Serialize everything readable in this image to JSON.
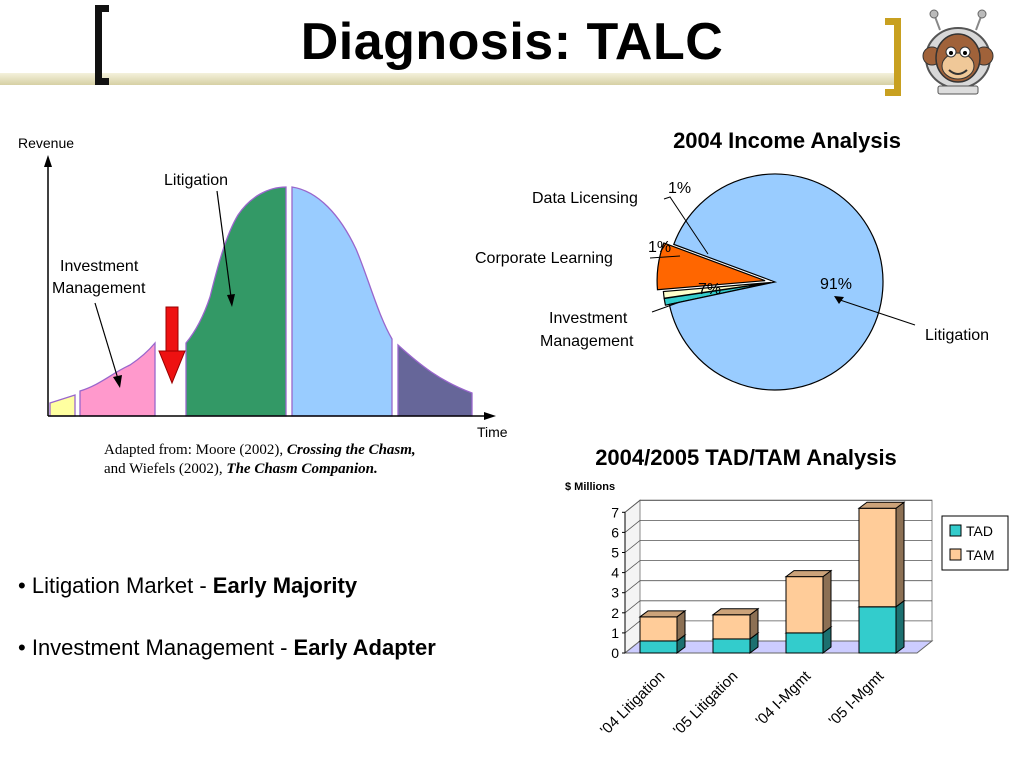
{
  "slide": {
    "title": "Diagnosis: TALC",
    "source_note": {
      "line1_prefix": "Adapted from: Moore (2002), ",
      "line1_title": "Crossing the Chasm,",
      "line2_prefix": "and Wiefels (2002), ",
      "line2_title": "The Chasm Companion."
    },
    "bullets": [
      {
        "text": "Litigation Market - ",
        "emphasis": "Early Majority"
      },
      {
        "text": "Investment Management - ",
        "emphasis": "Early Adapter"
      }
    ]
  },
  "colors": {
    "early_stage": "#ffffa0",
    "investment": "#ff99cc",
    "litigation": "#339966",
    "late_majority": "#99ccff",
    "laggards": "#666699",
    "arrow": "#ee1111",
    "pie_litigation": "#99ccff",
    "pie_investment": "#ff6600",
    "pie_corporate": "#ffffcc",
    "pie_data": "#33cccc",
    "tad": "#33cccc",
    "tam": "#ffcc99"
  },
  "chart_data": [
    {
      "type": "area",
      "kind": "technology-adoption-life-cycle",
      "xlabel": "Time",
      "ylabel": "Revenue",
      "annotations": [
        {
          "label": "Litigation",
          "segment": "early_majority"
        },
        {
          "label_lines": [
            "Investment",
            "Management"
          ],
          "segment": "early_adopters"
        }
      ],
      "segments": [
        "innovators",
        "early_adopters",
        "early_majority",
        "late_majority",
        "laggards"
      ]
    },
    {
      "type": "pie",
      "title": "2004 Income Analysis",
      "slices": [
        {
          "label": "Litigation",
          "value": 91,
          "value_label": "91%"
        },
        {
          "label": "Investment Management",
          "label_lines": [
            "Investment",
            "Management"
          ],
          "value": 7,
          "value_label": "7%"
        },
        {
          "label": "Corporate Learning",
          "value": 1,
          "value_label": "1%"
        },
        {
          "label": "Data Licensing",
          "value": 1,
          "value_label": "1%"
        }
      ]
    },
    {
      "type": "bar",
      "stacked": true,
      "title": "2004/2005 TAD/TAM Analysis",
      "ylabel": "$ Millions",
      "ylim": [
        0,
        7
      ],
      "yticks": [
        "0",
        "1",
        "2",
        "3",
        "4",
        "5",
        "6",
        "7"
      ],
      "categories": [
        "'04 Litigation",
        "'05 Litigation",
        "'04 I-Mgmt",
        "'05 I-Mgmt"
      ],
      "series": [
        {
          "name": "TAD",
          "values": [
            0.6,
            0.7,
            1.0,
            2.3
          ]
        },
        {
          "name": "TAM",
          "values": [
            1.2,
            1.2,
            2.8,
            4.9
          ]
        }
      ],
      "legend": "right"
    }
  ]
}
